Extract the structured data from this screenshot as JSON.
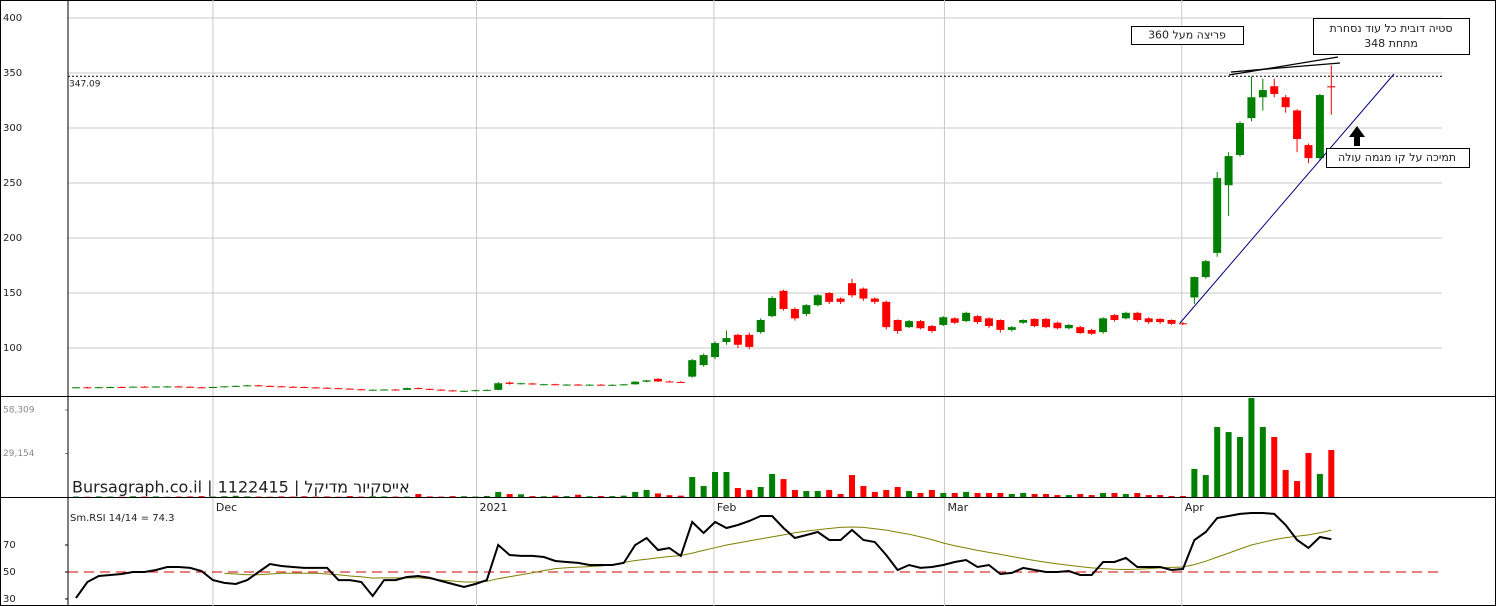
{
  "chart_data": [
    {
      "type": "candlestick",
      "up_color": "#008000",
      "down_color": "#ff0000",
      "ylim": [
        56.4,
        416.4
      ],
      "yticks": [
        100,
        150,
        200,
        250,
        300,
        350,
        400
      ],
      "grid": true,
      "xlim": [
        -0.7,
        119.7
      ],
      "xticks": [
        {
          "value": 12,
          "label": "Dec"
        },
        {
          "value": 35.1,
          "label": "2021"
        },
        {
          "value": 55.9,
          "label": "Feb"
        },
        {
          "value": 76.1,
          "label": "Mar"
        },
        {
          "value": 96.9,
          "label": "Apr"
        }
      ],
      "hline": 347.09,
      "watermark": "Bursagraph.co.il | 1122415 | אייסקיור מדיקל",
      "annotations": [
        {
          "lines": [
            "פריצה מעל 360"
          ]
        },
        {
          "lines": [
            "סטיה דובית כל עוד נסחרת",
            "מתחת 348"
          ]
        },
        {
          "lines": [
            "תמיכה על קו מגמה עולה"
          ]
        }
      ],
      "open": [
        64.0,
        64.3,
        64.0,
        64.4,
        64.6,
        64.5,
        64.9,
        64.7,
        64.8,
        65.1,
        64.8,
        64.3,
        64.0,
        64.6,
        65.2,
        65.6,
        66.1,
        65.6,
        65.2,
        64.8,
        64.6,
        64.2,
        63.9,
        63.5,
        63.1,
        62.5,
        61.9,
        62.1,
        62.3,
        62.0,
        63.6,
        62.9,
        62.2,
        61.5,
        60.9,
        61.1,
        61.7,
        62.0,
        68.6,
        67.4,
        67.8,
        66.9,
        67.1,
        66.6,
        66.8,
        66.5,
        66.7,
        66.4,
        66.6,
        67.0,
        69.4,
        72.0,
        69.6,
        69.2,
        74,
        84.5,
        91.8,
        105.5,
        112,
        112,
        114.5,
        129,
        152,
        135.5,
        131,
        139,
        150,
        145,
        159,
        154,
        145,
        142,
        125.5,
        119,
        124.5,
        120,
        121,
        127,
        124.5,
        129,
        127,
        125.5,
        116.5,
        123,
        126.5,
        126.5,
        123,
        118,
        119,
        116.5,
        114.5,
        130,
        127,
        132,
        127,
        126.5,
        125.5,
        122.5,
        146,
        164.5,
        186.5,
        248,
        275.5,
        309,
        328,
        338,
        328,
        316,
        284.5,
        272.7,
        338
      ],
      "high": [
        64.6,
        64.8,
        64.7,
        65.0,
        65.1,
        65.2,
        65.4,
        65.3,
        65.4,
        65.6,
        65.2,
        64.8,
        64.9,
        65.4,
        65.9,
        66.3,
        66.6,
        66.0,
        65.6,
        65.3,
        65.0,
        64.7,
        64.3,
        63.9,
        63.5,
        62.9,
        62.4,
        62.6,
        62.8,
        64.0,
        64.1,
        63.3,
        62.6,
        61.9,
        61.4,
        62.0,
        62.4,
        69.0,
        69.4,
        68.4,
        68.2,
        67.5,
        67.6,
        67.2,
        67.3,
        67.1,
        67.2,
        67.0,
        67.3,
        69.8,
        71.0,
        72.6,
        70.3,
        69.8,
        90,
        95,
        106,
        116,
        113,
        114,
        127,
        147,
        153,
        137,
        140,
        149,
        151,
        146,
        163,
        155,
        146,
        143,
        126,
        125.5,
        125.5,
        121,
        129,
        128,
        133,
        130,
        128,
        126,
        120,
        126,
        127,
        127.5,
        124,
        122,
        120,
        117.5,
        128,
        131,
        133,
        133,
        128,
        127,
        126,
        123.6,
        165,
        180,
        260,
        278,
        306,
        347,
        345,
        345,
        330,
        317,
        286,
        331,
        357
      ],
      "low": [
        63.5,
        63.9,
        63.6,
        64.0,
        64.2,
        64.1,
        64.4,
        64.3,
        64.4,
        64.6,
        64.1,
        63.6,
        63.7,
        64.2,
        64.9,
        65.0,
        65.4,
        64.9,
        64.5,
        64.2,
        63.9,
        63.6,
        63.2,
        62.8,
        62.3,
        61.7,
        61.3,
        61.5,
        61.6,
        61.8,
        62.7,
        62.0,
        61.2,
        60.6,
        60.3,
        60.8,
        61.2,
        61.6,
        66.8,
        66.9,
        66.6,
        66.2,
        66.3,
        66.0,
        66.1,
        65.9,
        66.0,
        65.8,
        66.1,
        66.7,
        68.8,
        69.2,
        68.8,
        68.2,
        73,
        83,
        90,
        103,
        100,
        99,
        113,
        128,
        134,
        125,
        129,
        138,
        140,
        140,
        146,
        143,
        140,
        117,
        113,
        118,
        117,
        114,
        120,
        122,
        123.5,
        122,
        118,
        114,
        115,
        122,
        119,
        118,
        117,
        117,
        113,
        112,
        113,
        124,
        126,
        124,
        122,
        122,
        121,
        121,
        140,
        163,
        183,
        220,
        274,
        306,
        316,
        328,
        314,
        278,
        268,
        270,
        312
      ],
      "close": [
        64.3,
        64.0,
        64.4,
        64.6,
        64.5,
        64.9,
        64.7,
        65.0,
        65.1,
        64.8,
        64.3,
        63.9,
        64.6,
        65.2,
        65.6,
        66.1,
        65.6,
        65.2,
        64.8,
        64.6,
        64.2,
        63.9,
        63.5,
        63.1,
        62.5,
        61.9,
        62.1,
        62.3,
        62.0,
        63.6,
        62.9,
        62.2,
        61.5,
        60.9,
        61.1,
        61.7,
        62.0,
        68.0,
        67.4,
        68.0,
        66.9,
        67.1,
        66.6,
        66.8,
        66.5,
        66.7,
        66.4,
        66.6,
        67.0,
        69.4,
        70.6,
        69.6,
        69.2,
        68.6,
        89,
        93.6,
        104.5,
        109,
        103,
        101,
        125.5,
        145.5,
        135.5,
        127,
        139,
        148,
        142,
        142,
        148,
        145,
        142,
        119,
        115.5,
        124.5,
        118,
        115.5,
        128,
        123,
        132,
        123.6,
        120,
        116.5,
        119,
        125.5,
        120,
        119,
        118,
        121,
        113.6,
        113,
        127,
        125.5,
        132,
        125.5,
        123.6,
        123.6,
        122,
        122,
        164.5,
        179,
        254.5,
        274.5,
        304.5,
        328,
        334.5,
        331,
        319,
        290,
        272.7,
        330,
        337
      ]
    },
    {
      "type": "bar",
      "ylim": [
        0,
        67000
      ],
      "yticks": [
        {
          "value": 58309,
          "label": "58,309"
        },
        {
          "value": 29154,
          "label": "29,154"
        }
      ],
      "values": [
        300,
        200,
        400,
        300,
        200,
        500,
        300,
        400,
        200,
        300,
        400,
        600,
        300,
        500,
        800,
        400,
        300,
        200,
        400,
        300,
        500,
        300,
        400,
        200,
        600,
        300,
        500,
        400,
        300,
        300,
        2000,
        400,
        300,
        600,
        500,
        300,
        700,
        3400,
        2000,
        1800,
        600,
        500,
        900,
        600,
        1500,
        500,
        700,
        600,
        900,
        3400,
        4700,
        2400,
        1200,
        900,
        13400,
        7400,
        16750,
        16750,
        6000,
        4700,
        6700,
        15400,
        12000,
        4700,
        4000,
        4000,
        4700,
        2000,
        14700,
        7400,
        3400,
        4700,
        6700,
        4000,
        2700,
        4700,
        2700,
        2700,
        3400,
        2700,
        2700,
        2700,
        2000,
        2700,
        2000,
        2000,
        1300,
        1300,
        2000,
        1300,
        2700,
        2700,
        2000,
        2700,
        1300,
        1300,
        700,
        700,
        18800,
        14700,
        46900,
        43500,
        40200,
        66300,
        46900,
        40200,
        18100,
        10700,
        29500,
        15400,
        31500
      ]
    },
    {
      "type": "line",
      "label": "Sm.RSI 14/14 = 74.3",
      "ylim": [
        24.8,
        104.8
      ],
      "yticks": [
        70,
        50,
        30
      ],
      "level": 50,
      "level_color": "#d00000",
      "series": [
        {
          "color": "#000000",
          "values": [
            30.7,
            42.6,
            47,
            47.8,
            48.5,
            50,
            50,
            51.5,
            53.7,
            53.7,
            53,
            50.7,
            44,
            41.9,
            41.1,
            44,
            50,
            55.9,
            54.4,
            53.7,
            53,
            53,
            53,
            44,
            44,
            42.6,
            32.2,
            44,
            44,
            46.3,
            47,
            45.6,
            43.3,
            41.1,
            38.9,
            41.1,
            44,
            70,
            62.6,
            61.9,
            61.9,
            61.1,
            58.1,
            57.4,
            56.7,
            55.2,
            55.2,
            55.2,
            56.7,
            70,
            75.2,
            66.3,
            67.8,
            61.9,
            87,
            78.9,
            87,
            82.6,
            84.8,
            87.8,
            91.5,
            91.5,
            82.6,
            75.2,
            77.4,
            79.6,
            73.7,
            73.7,
            81.1,
            73.7,
            72.2,
            62.6,
            51.5,
            55.2,
            53,
            53.7,
            55.2,
            57.4,
            58.9,
            53.7,
            55.2,
            48.5,
            49.3,
            53,
            51.5,
            50,
            50,
            50.7,
            47.8,
            47.8,
            57.4,
            57.4,
            60.4,
            53.7,
            53.7,
            53.7,
            51.5,
            52.2,
            73.7,
            79.6,
            90,
            91.5,
            93,
            93.7,
            93.7,
            93,
            84.8,
            73.7,
            67.8,
            75.9,
            74.3
          ]
        },
        {
          "color": "#808000",
          "values": [
            null,
            null,
            null,
            null,
            null,
            null,
            null,
            null,
            null,
            null,
            null,
            null,
            null,
            49,
            48.5,
            48,
            48,
            48.5,
            49,
            49,
            49,
            49,
            48.5,
            48,
            47,
            46.5,
            45.5,
            45.6,
            45.6,
            45.6,
            45.6,
            45,
            44,
            43.3,
            42.6,
            42.6,
            43,
            45,
            46.5,
            48,
            49.5,
            51,
            52.5,
            53.2,
            53.6,
            54,
            54.4,
            55.5,
            57,
            58.5,
            59.5,
            60.5,
            61.5,
            62.2,
            64,
            66,
            68,
            70,
            71.5,
            73,
            74.5,
            76,
            77.5,
            79,
            80.3,
            81.3,
            82.2,
            83,
            83.3,
            83,
            82,
            81,
            79.5,
            78,
            76,
            74,
            71.5,
            69.5,
            67.8,
            66,
            64.5,
            63,
            61.5,
            60,
            58.5,
            57.2,
            56,
            55,
            54,
            53,
            52.5,
            52,
            51.8,
            52,
            52.5,
            53,
            53.4,
            53.7,
            55.5,
            58,
            61,
            64,
            67,
            70,
            72,
            74,
            75.5,
            76.5,
            77.5,
            79,
            81
          ]
        }
      ]
    }
  ]
}
